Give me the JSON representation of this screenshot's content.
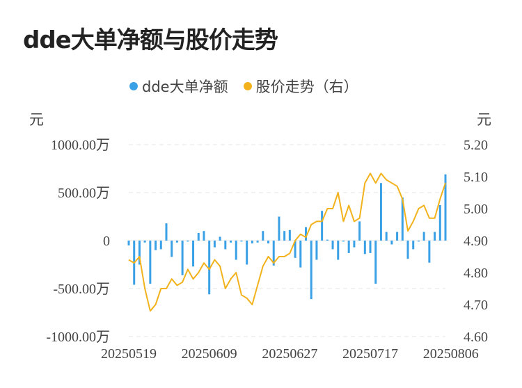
{
  "title": "dde大单净额与股价走势",
  "colors": {
    "bar": "#3ba1e6",
    "line": "#f2b21c",
    "grid": "#e6e6e6",
    "text": "#444444"
  },
  "chart_data": {
    "type": "bar+line",
    "legend": [
      {
        "name": "dde大单净额",
        "color": "#3ba1e6"
      },
      {
        "name": "股价走势（右）",
        "color": "#f2b21c"
      }
    ],
    "left_axis": {
      "unit": "元",
      "ylim": [
        -1000,
        1000
      ],
      "ticks": [
        1000,
        500,
        0,
        -500,
        -1000
      ],
      "tick_labels": [
        "1000.00万",
        "500.00万",
        "0",
        "-500.00万",
        "-1000.00万"
      ]
    },
    "right_axis": {
      "unit": "元",
      "ylim": [
        4.6,
        5.2
      ],
      "ticks": [
        5.2,
        5.1,
        5.0,
        4.9,
        4.8,
        4.7,
        4.6
      ],
      "tick_labels": [
        "5.20",
        "5.10",
        "5.00",
        "4.90",
        "4.80",
        "4.70",
        "4.60"
      ]
    },
    "x_tick_labels": [
      {
        "label": "20250519",
        "index": 0
      },
      {
        "label": "20250609",
        "index": 15
      },
      {
        "label": "20250627",
        "index": 30
      },
      {
        "label": "20250717",
        "index": 45
      },
      {
        "label": "20250806",
        "index": 60
      }
    ],
    "series": [
      {
        "name": "dde大单净额",
        "axis": "left",
        "kind": "bar",
        "values": [
          -50,
          -460,
          -250,
          -20,
          -450,
          -100,
          -90,
          180,
          -170,
          -20,
          -360,
          -10,
          -270,
          80,
          100,
          -560,
          -70,
          40,
          -90,
          -20,
          -200,
          -10,
          -250,
          -30,
          -20,
          100,
          -30,
          -260,
          250,
          100,
          110,
          -180,
          -280,
          140,
          -610,
          -200,
          310,
          10,
          -90,
          -200,
          -10,
          -130,
          -70,
          200,
          -140,
          -130,
          -450,
          600,
          90,
          -40,
          90,
          450,
          -190,
          -90,
          -10,
          90,
          -230,
          90,
          370,
          690
        ]
      },
      {
        "name": "股价走势（右）",
        "axis": "right",
        "kind": "line",
        "values": [
          4.84,
          4.83,
          4.85,
          4.75,
          4.68,
          4.7,
          4.75,
          4.75,
          4.78,
          4.76,
          4.77,
          4.81,
          4.78,
          4.8,
          4.83,
          4.81,
          4.84,
          4.82,
          4.75,
          4.78,
          4.8,
          4.73,
          4.72,
          4.7,
          4.76,
          4.82,
          4.85,
          4.83,
          4.85,
          4.85,
          4.86,
          4.9,
          4.92,
          4.91,
          4.95,
          4.96,
          4.96,
          5.0,
          5.0,
          5.05,
          4.96,
          5.01,
          4.96,
          4.97,
          5.08,
          5.11,
          5.08,
          5.11,
          5.09,
          5.08,
          5.07,
          5.03,
          4.93,
          4.96,
          5.0,
          5.01,
          4.97,
          4.97,
          5.03,
          5.08
        ]
      }
    ]
  }
}
